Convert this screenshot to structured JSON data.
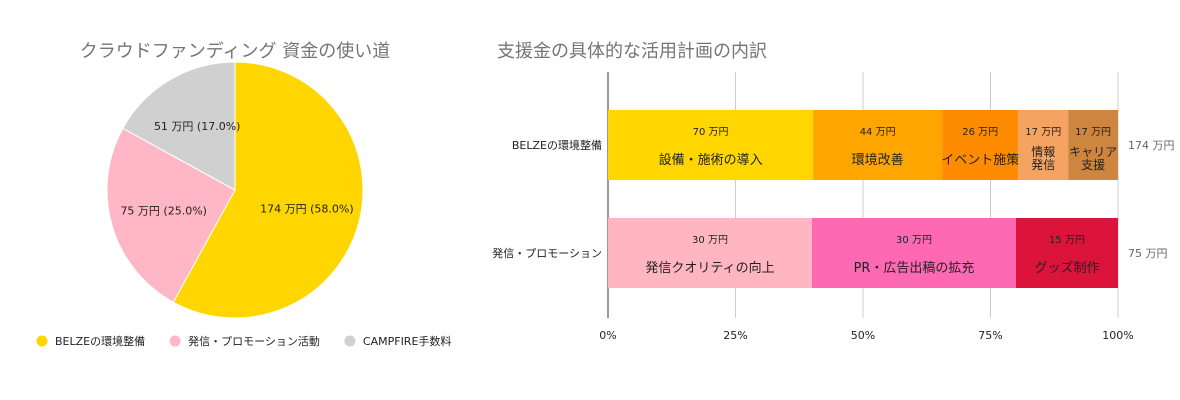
{
  "chart_data": [
    {
      "type": "pie",
      "title": "クラウドファンディング 資金の使い道",
      "slices": [
        {
          "name": "BELZEの環境整備",
          "value": 174,
          "label": "174 万円 (58.0%)",
          "color": "#FFD600"
        },
        {
          "name": "発信・プロモーション活動",
          "value": 75,
          "label": "75 万円 (25.0%)",
          "color": "#FFB7C5"
        },
        {
          "name": "CAMPFIRE手数料",
          "value": 51,
          "label": "51 万円 (17.0%)",
          "color": "#D0D0D0"
        }
      ],
      "legend": "bottom"
    },
    {
      "type": "bar",
      "orientation": "horizontal",
      "stacked": "percent",
      "title": "支援金の具体的な活用計画の内訳",
      "xlim": [
        0,
        100
      ],
      "xticks": [
        "0%",
        "25%",
        "50%",
        "75%",
        "100%"
      ],
      "grid": true,
      "rows": [
        {
          "category": "BELZEの環境整備",
          "total_label": "174 万円",
          "segments": [
            {
              "value": 70,
              "value_label": "70 万円",
              "name": [
                "設備・施術の導入"
              ],
              "color": "#FFD600"
            },
            {
              "value": 44,
              "value_label": "44 万円",
              "name": [
                "環境改善"
              ],
              "color": "#FFA500"
            },
            {
              "value": 26,
              "value_label": "26 万円",
              "name": [
                "イベント施策"
              ],
              "color": "#FF8C00"
            },
            {
              "value": 17,
              "value_label": "17 万円",
              "name": [
                "情報",
                "発信"
              ],
              "color": "#F4A460"
            },
            {
              "value": 17,
              "value_label": "17 万円",
              "name": [
                "キャリア",
                "支援"
              ],
              "color": "#CD853F"
            }
          ]
        },
        {
          "category": "発信・プロモーション",
          "total_label": "75 万円",
          "segments": [
            {
              "value": 30,
              "value_label": "30 万円",
              "name": [
                "発信クオリティの向上"
              ],
              "color": "#FFB6C1"
            },
            {
              "value": 30,
              "value_label": "30 万円",
              "name": [
                "PR・広告出稿の拡充"
              ],
              "color": "#FF69B4"
            },
            {
              "value": 15,
              "value_label": "15 万円",
              "name": [
                "グッズ制作"
              ],
              "color": "#DC143C"
            }
          ]
        }
      ]
    }
  ]
}
